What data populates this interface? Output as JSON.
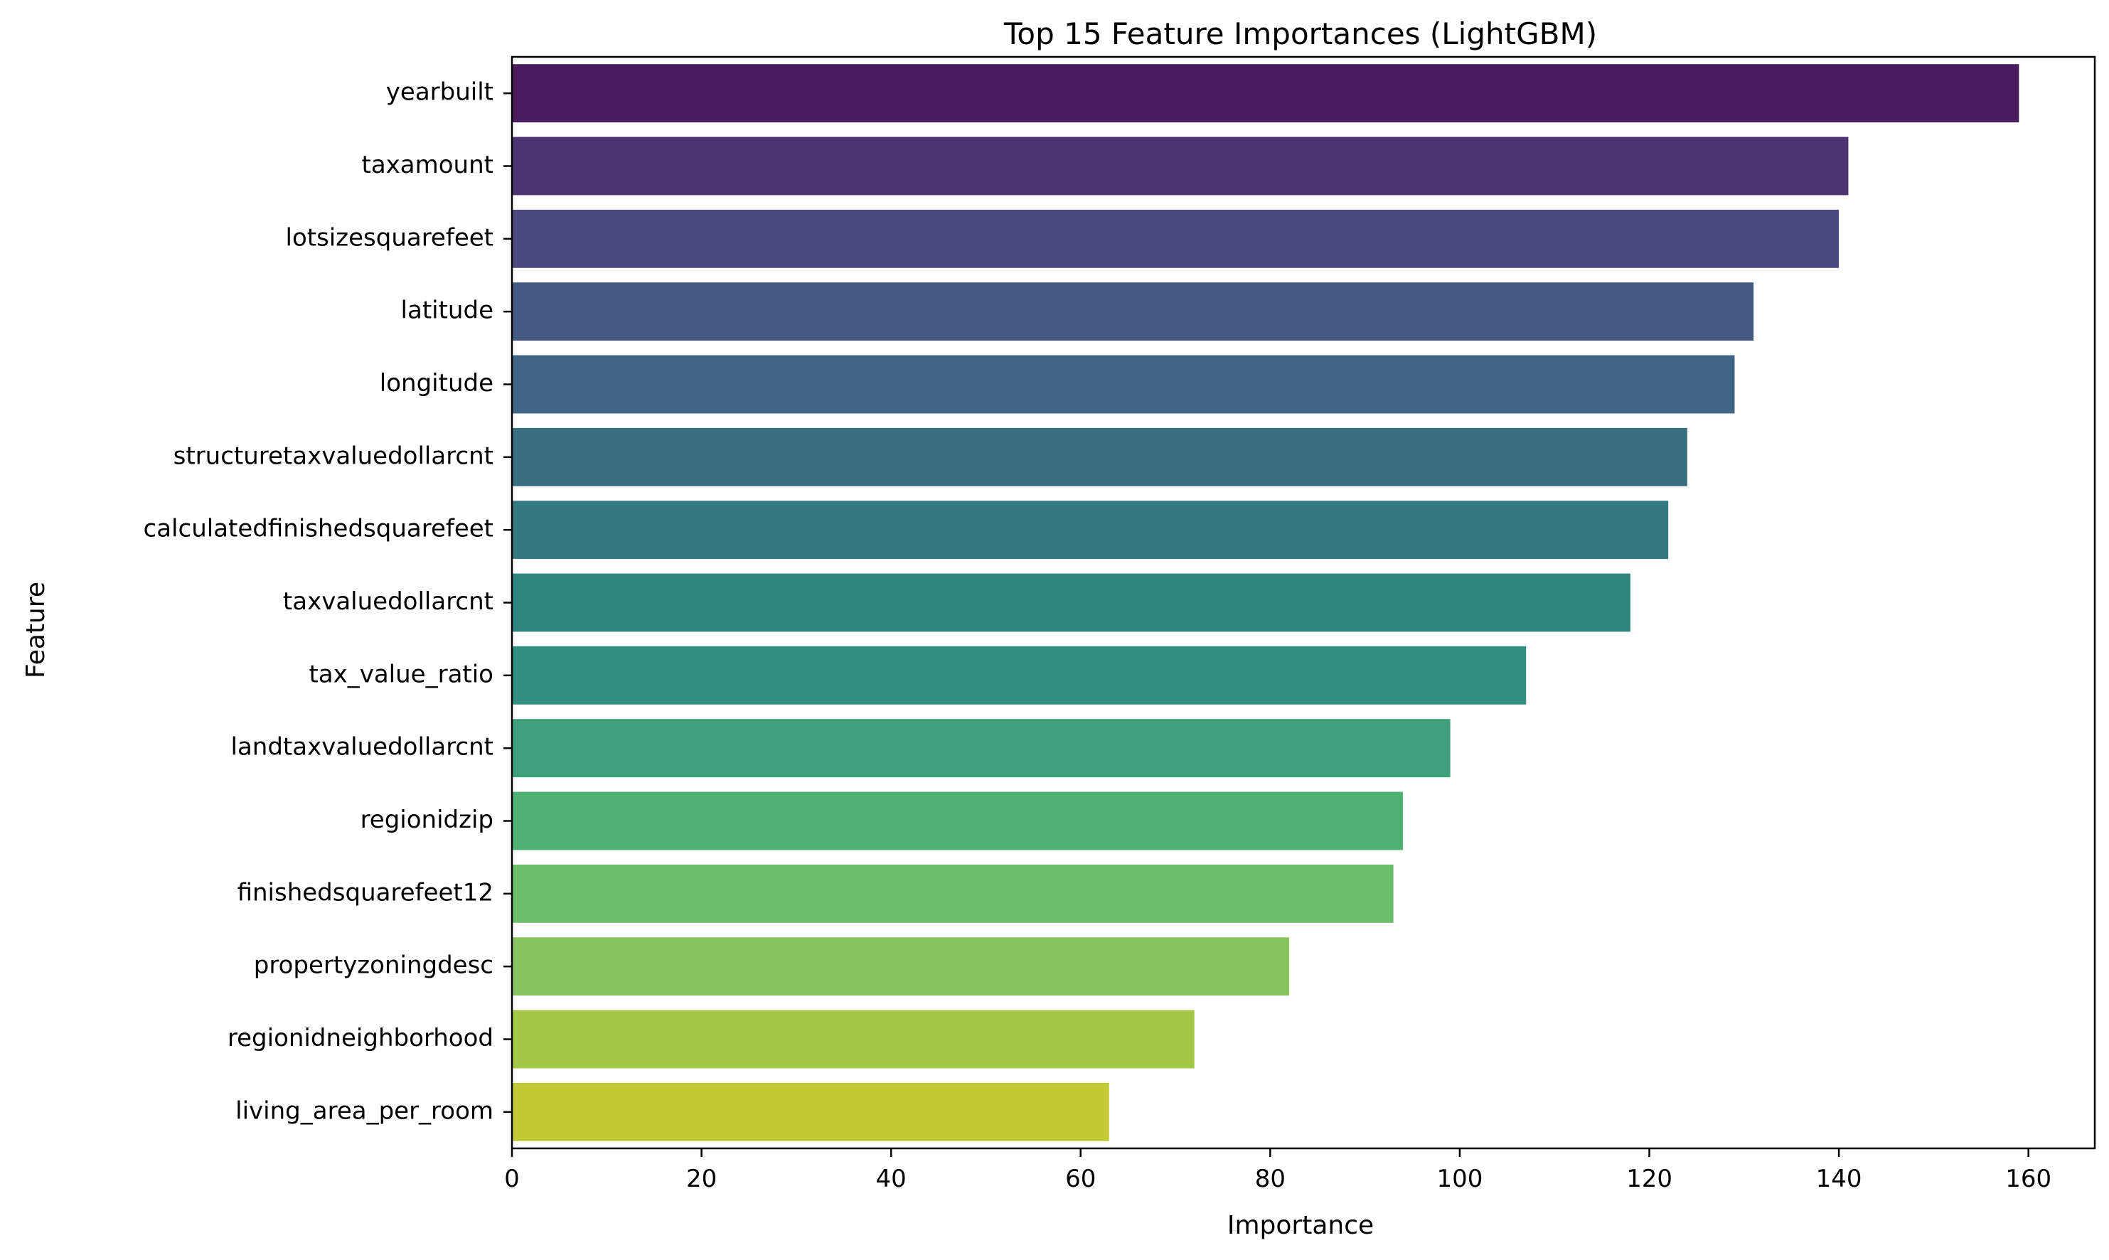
{
  "chart_data": {
    "type": "bar",
    "orientation": "horizontal",
    "title": "Top 15 Feature Importances (LightGBM)",
    "xlabel": "Importance",
    "ylabel": "Feature",
    "xlim": [
      0,
      167
    ],
    "xticks": [
      0,
      20,
      40,
      60,
      80,
      100,
      120,
      140,
      160
    ],
    "grid": false,
    "legend": "none",
    "categories": [
      "yearbuilt",
      "taxamount",
      "lotsizesquarefeet",
      "latitude",
      "longitude",
      "structuretaxvaluedollarcnt",
      "calculatedfinishedsquarefeet",
      "taxvaluedollarcnt",
      "tax_value_ratio",
      "landtaxvaluedollarcnt",
      "regionidzip",
      "finishedsquarefeet12",
      "propertyzoningdesc",
      "regionidneighborhood",
      "living_area_per_room"
    ],
    "values": [
      159,
      141,
      140,
      131,
      129,
      124,
      122,
      118,
      107,
      99,
      94,
      93,
      82,
      72,
      63
    ],
    "colors": [
      "#481c5d",
      "#4a3472",
      "#4a4a80",
      "#455a83",
      "#3f6484",
      "#386f81",
      "#34797f",
      "#30847f",
      "#2f917d",
      "#3da07a",
      "#4fb073",
      "#6dbe6a",
      "#87c35f",
      "#a4c747",
      "#c1ca34"
    ]
  }
}
